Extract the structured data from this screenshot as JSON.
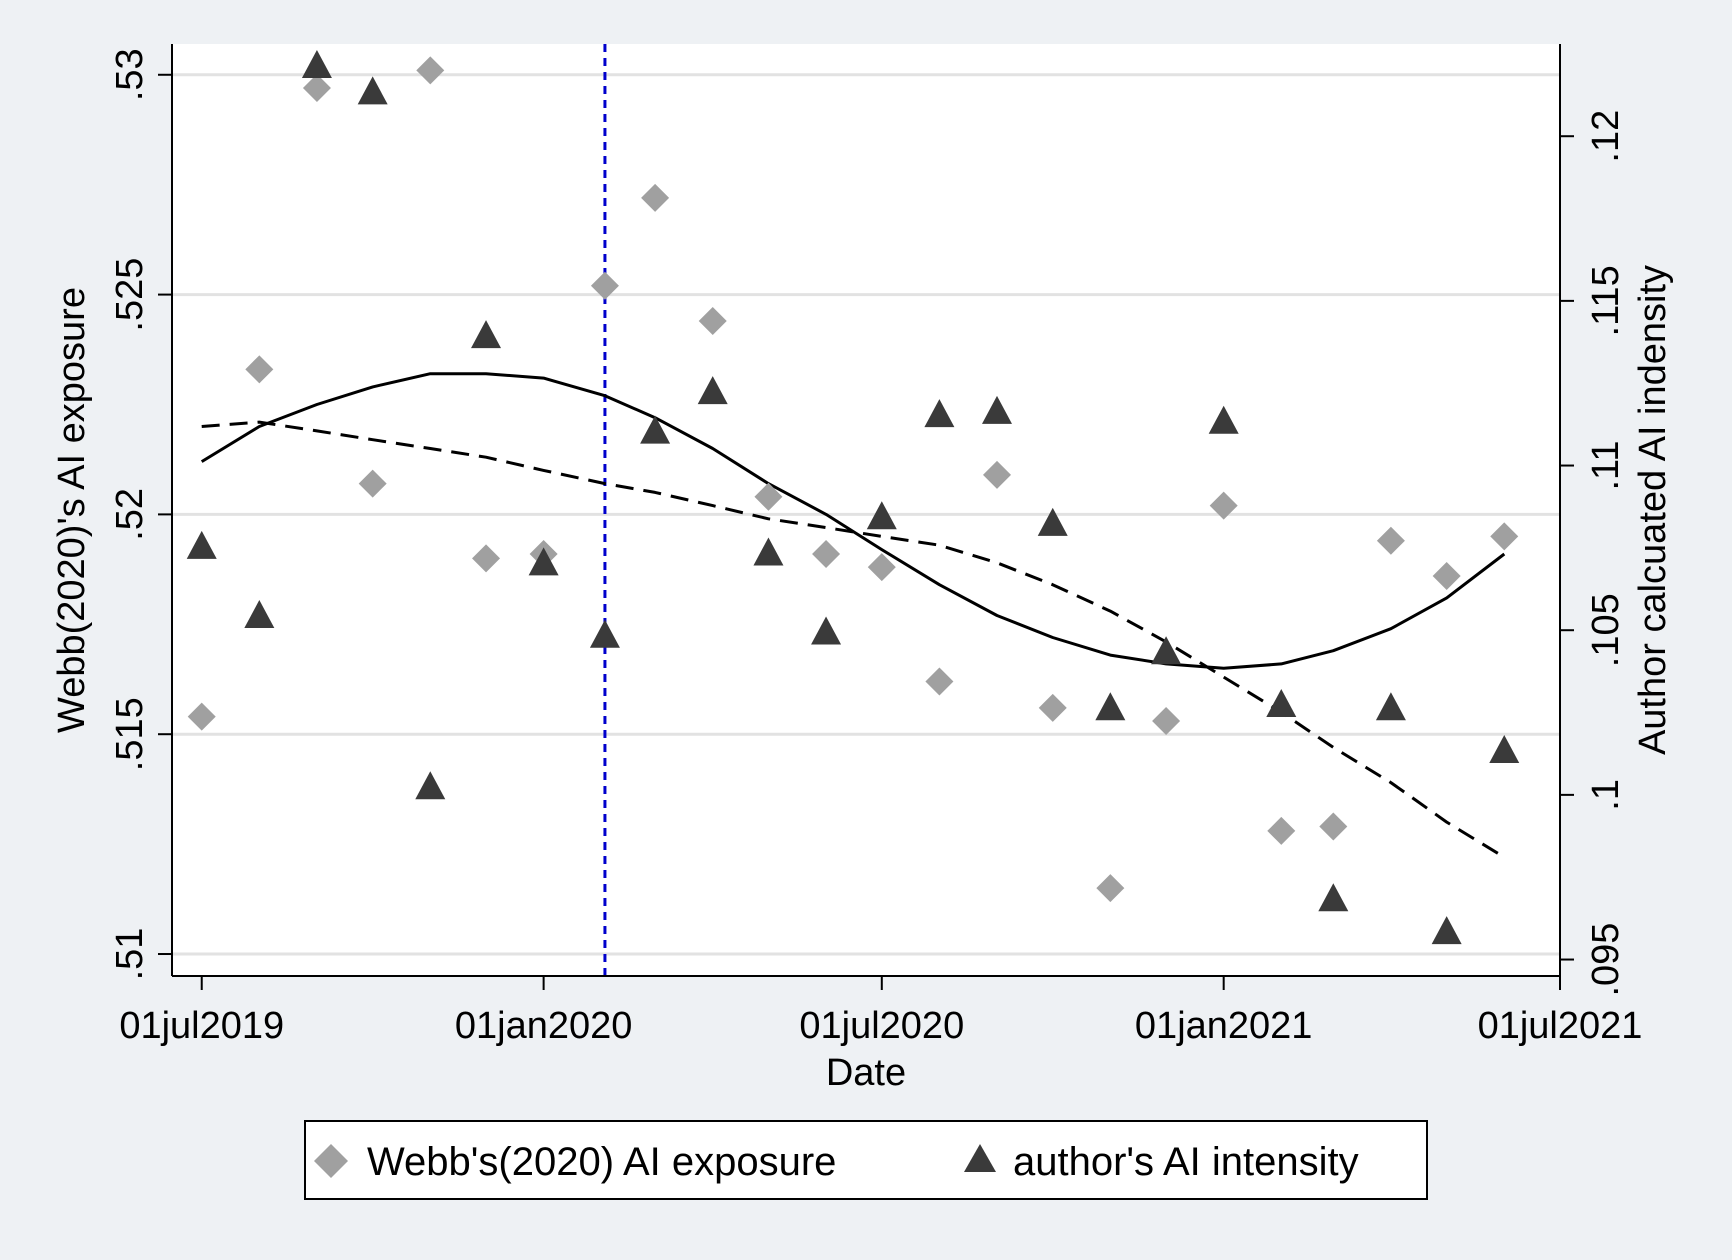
{
  "chart_data": {
    "type": "scatter",
    "x_axis": {
      "label": "Date",
      "ticks": [
        {
          "date": "2019-07-01",
          "label": "01jul2019"
        },
        {
          "date": "2020-01-01",
          "label": "01jan2020"
        },
        {
          "date": "2020-07-01",
          "label": "01jul2020"
        },
        {
          "date": "2021-01-01",
          "label": "01jan2021"
        },
        {
          "date": "2021-07-01",
          "label": "01jul2021"
        }
      ],
      "range": [
        "2019-06-15",
        "2021-07-01"
      ]
    },
    "y_left": {
      "label": "Webb(2020)'s AI exposure",
      "ticks": [
        {
          "value": 0.51,
          "label": ".51"
        },
        {
          "value": 0.515,
          "label": ".515"
        },
        {
          "value": 0.52,
          "label": ".52"
        },
        {
          "value": 0.525,
          "label": ".525"
        },
        {
          "value": 0.53,
          "label": ".53"
        }
      ],
      "range": [
        0.5095,
        0.5307
      ]
    },
    "y_right": {
      "label": "Author calcuated AI indensity",
      "ticks": [
        {
          "value": 0.095,
          "label": ".095"
        },
        {
          "value": 0.1,
          "label": ".1"
        },
        {
          "value": 0.105,
          "label": ".105"
        },
        {
          "value": 0.11,
          "label": ".11"
        },
        {
          "value": 0.115,
          "label": ".115"
        },
        {
          "value": 0.12,
          "label": ".12"
        }
      ],
      "range": [
        0.0945,
        0.1228
      ]
    },
    "grid": true,
    "vertical_reference_line": {
      "date": "2020-02-03",
      "color": "#0000cc",
      "style": "dotted"
    },
    "series": [
      {
        "name": "Webb's(2020) AI exposure",
        "axis": "left",
        "marker": "diamond",
        "color": "#a0a0a0",
        "points": [
          {
            "date": "2019-07-01",
            "y": 0.5154
          },
          {
            "date": "2019-08-01",
            "y": 0.5233
          },
          {
            "date": "2019-09-01",
            "y": 0.5297
          },
          {
            "date": "2019-10-01",
            "y": 0.5207
          },
          {
            "date": "2019-11-01",
            "y": 0.5301
          },
          {
            "date": "2019-12-01",
            "y": 0.519
          },
          {
            "date": "2020-01-01",
            "y": 0.5191
          },
          {
            "date": "2020-02-03",
            "y": 0.5252
          },
          {
            "date": "2020-03-01",
            "y": 0.5272
          },
          {
            "date": "2020-04-01",
            "y": 0.5244
          },
          {
            "date": "2020-05-01",
            "y": 0.5204
          },
          {
            "date": "2020-06-01",
            "y": 0.5191
          },
          {
            "date": "2020-07-01",
            "y": 0.5188
          },
          {
            "date": "2020-08-01",
            "y": 0.5162
          },
          {
            "date": "2020-09-01",
            "y": 0.5209
          },
          {
            "date": "2020-10-01",
            "y": 0.5156
          },
          {
            "date": "2020-11-01",
            "y": 0.5115
          },
          {
            "date": "2020-12-01",
            "y": 0.5153
          },
          {
            "date": "2021-01-01",
            "y": 0.5202
          },
          {
            "date": "2021-02-01",
            "y": 0.5128
          },
          {
            "date": "2021-03-01",
            "y": 0.5129
          },
          {
            "date": "2021-04-01",
            "y": 0.5194
          },
          {
            "date": "2021-05-01",
            "y": 0.5186
          },
          {
            "date": "2021-06-01",
            "y": 0.5195
          }
        ]
      },
      {
        "name": "author's AI intensity",
        "axis": "right",
        "marker": "triangle",
        "color": "#3a3a3a",
        "points": [
          {
            "date": "2019-07-01",
            "y": 0.1075
          },
          {
            "date": "2019-08-01",
            "y": 0.1054
          },
          {
            "date": "2019-09-01",
            "y": 0.1221
          },
          {
            "date": "2019-10-01",
            "y": 0.1213
          },
          {
            "date": "2019-11-01",
            "y": 0.1002
          },
          {
            "date": "2019-12-01",
            "y": 0.1139
          },
          {
            "date": "2020-01-01",
            "y": 0.107
          },
          {
            "date": "2020-02-03",
            "y": 0.1048
          },
          {
            "date": "2020-03-01",
            "y": 0.111
          },
          {
            "date": "2020-04-01",
            "y": 0.1122
          },
          {
            "date": "2020-05-01",
            "y": 0.1073
          },
          {
            "date": "2020-06-01",
            "y": 0.1049
          },
          {
            "date": "2020-07-01",
            "y": 0.1084
          },
          {
            "date": "2020-08-01",
            "y": 0.1115
          },
          {
            "date": "2020-09-01",
            "y": 0.1116
          },
          {
            "date": "2020-10-01",
            "y": 0.1082
          },
          {
            "date": "2020-11-01",
            "y": 0.1026
          },
          {
            "date": "2020-12-01",
            "y": 0.1043
          },
          {
            "date": "2021-01-01",
            "y": 0.1113
          },
          {
            "date": "2021-02-01",
            "y": 0.1027
          },
          {
            "date": "2021-03-01",
            "y": 0.0968
          },
          {
            "date": "2021-04-01",
            "y": 0.1026
          },
          {
            "date": "2021-05-01",
            "y": 0.0958
          },
          {
            "date": "2021-06-01",
            "y": 0.1013
          }
        ]
      }
    ],
    "fitted_lines": [
      {
        "style": "solid",
        "axis": "left",
        "points": [
          {
            "date": "2019-07-01",
            "y": 0.5212
          },
          {
            "date": "2019-08-01",
            "y": 0.522
          },
          {
            "date": "2019-09-01",
            "y": 0.5225
          },
          {
            "date": "2019-10-01",
            "y": 0.5229
          },
          {
            "date": "2019-11-01",
            "y": 0.5232
          },
          {
            "date": "2019-12-01",
            "y": 0.5232
          },
          {
            "date": "2020-01-01",
            "y": 0.5231
          },
          {
            "date": "2020-02-03",
            "y": 0.5227
          },
          {
            "date": "2020-03-01",
            "y": 0.5222
          },
          {
            "date": "2020-04-01",
            "y": 0.5215
          },
          {
            "date": "2020-05-01",
            "y": 0.5207
          },
          {
            "date": "2020-06-01",
            "y": 0.52
          },
          {
            "date": "2020-07-01",
            "y": 0.5192
          },
          {
            "date": "2020-08-01",
            "y": 0.5184
          },
          {
            "date": "2020-09-01",
            "y": 0.5177
          },
          {
            "date": "2020-10-01",
            "y": 0.5172
          },
          {
            "date": "2020-11-01",
            "y": 0.5168
          },
          {
            "date": "2020-12-01",
            "y": 0.5166
          },
          {
            "date": "2021-01-01",
            "y": 0.5165
          },
          {
            "date": "2021-02-01",
            "y": 0.5166
          },
          {
            "date": "2021-03-01",
            "y": 0.5169
          },
          {
            "date": "2021-04-01",
            "y": 0.5174
          },
          {
            "date": "2021-05-01",
            "y": 0.5181
          },
          {
            "date": "2021-06-01",
            "y": 0.5191
          }
        ]
      },
      {
        "style": "dashed",
        "axis": "left",
        "points": [
          {
            "date": "2019-07-01",
            "y": 0.522
          },
          {
            "date": "2019-08-01",
            "y": 0.5221
          },
          {
            "date": "2019-09-01",
            "y": 0.5219
          },
          {
            "date": "2019-10-01",
            "y": 0.5217
          },
          {
            "date": "2019-11-01",
            "y": 0.5215
          },
          {
            "date": "2019-12-01",
            "y": 0.5213
          },
          {
            "date": "2020-01-01",
            "y": 0.521
          },
          {
            "date": "2020-02-03",
            "y": 0.5207
          },
          {
            "date": "2020-03-01",
            "y": 0.5205
          },
          {
            "date": "2020-04-01",
            "y": 0.5202
          },
          {
            "date": "2020-05-01",
            "y": 0.5199
          },
          {
            "date": "2020-06-01",
            "y": 0.5197
          },
          {
            "date": "2020-07-01",
            "y": 0.5195
          },
          {
            "date": "2020-08-01",
            "y": 0.5193
          },
          {
            "date": "2020-09-01",
            "y": 0.5189
          },
          {
            "date": "2020-10-01",
            "y": 0.5184
          },
          {
            "date": "2020-11-01",
            "y": 0.5178
          },
          {
            "date": "2020-12-01",
            "y": 0.5171
          },
          {
            "date": "2021-01-01",
            "y": 0.5163
          },
          {
            "date": "2021-02-01",
            "y": 0.5155
          },
          {
            "date": "2021-03-01",
            "y": 0.5147
          },
          {
            "date": "2021-04-01",
            "y": 0.5139
          },
          {
            "date": "2021-05-01",
            "y": 0.513
          },
          {
            "date": "2021-06-01",
            "y": 0.5122
          }
        ]
      }
    ],
    "legend": {
      "position": "bottom",
      "entries": [
        {
          "label": "Webb's(2020) AI exposure",
          "marker": "diamond",
          "color": "#a0a0a0"
        },
        {
          "label": "author's AI intensity",
          "marker": "triangle",
          "color": "#3a3a3a"
        }
      ]
    }
  }
}
